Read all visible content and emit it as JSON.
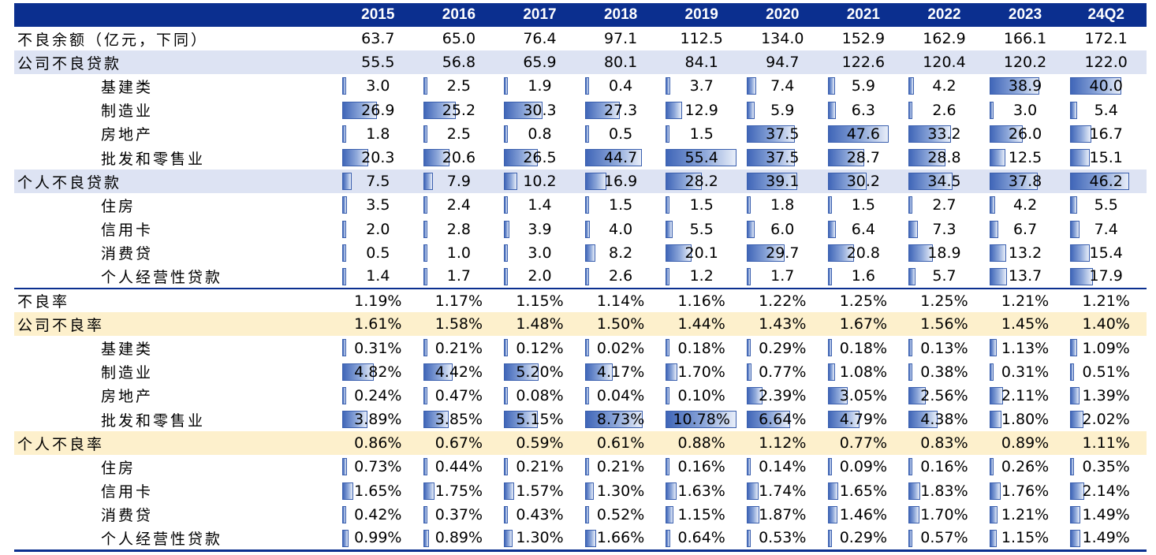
{
  "years": [
    "2015",
    "2016",
    "2017",
    "2018",
    "2019",
    "2020",
    "2021",
    "2022",
    "2023",
    "24Q2"
  ],
  "rows": [
    {
      "label": "不良余额（亿元，下同）",
      "level": "top",
      "values": [
        "63.7",
        "65.0",
        "76.4",
        "97.1",
        "112.5",
        "134.0",
        "152.9",
        "162.9",
        "166.1",
        "172.1"
      ]
    },
    {
      "label": "公司不良贷款",
      "level": "top",
      "highlight": "blue",
      "values": [
        "55.5",
        "56.8",
        "65.9",
        "80.1",
        "84.1",
        "94.7",
        "122.6",
        "120.4",
        "120.2",
        "122.0"
      ]
    },
    {
      "label": "基建类",
      "level": "sub",
      "values": [
        "3.0",
        "2.5",
        "1.9",
        "0.4",
        "3.7",
        "7.4",
        "5.9",
        "4.2",
        "38.9",
        "40.0"
      ]
    },
    {
      "label": "制造业",
      "level": "sub",
      "values": [
        "26.9",
        "25.2",
        "30.3",
        "27.3",
        "12.9",
        "5.9",
        "6.3",
        "2.6",
        "3.0",
        "5.4"
      ]
    },
    {
      "label": "房地产",
      "level": "sub",
      "values": [
        "1.8",
        "2.5",
        "0.8",
        "0.5",
        "1.5",
        "37.5",
        "47.6",
        "33.2",
        "26.0",
        "16.7"
      ]
    },
    {
      "label": "批发和零售业",
      "level": "sub",
      "values": [
        "20.3",
        "20.6",
        "26.5",
        "44.7",
        "55.4",
        "37.5",
        "28.7",
        "28.8",
        "12.5",
        "15.1"
      ]
    },
    {
      "label": "个人不良贷款",
      "level": "top",
      "highlight": "blue",
      "values": [
        "7.5",
        "7.9",
        "10.2",
        "16.9",
        "28.2",
        "39.1",
        "30.2",
        "34.5",
        "37.8",
        "46.2"
      ]
    },
    {
      "label": "住房",
      "level": "sub",
      "values": [
        "3.5",
        "2.4",
        "1.4",
        "1.5",
        "1.5",
        "1.8",
        "1.5",
        "2.7",
        "4.2",
        "5.5"
      ]
    },
    {
      "label": "信用卡",
      "level": "sub",
      "values": [
        "2.0",
        "2.8",
        "3.9",
        "4.0",
        "5.5",
        "6.0",
        "6.4",
        "7.3",
        "6.7",
        "7.4"
      ]
    },
    {
      "label": "消费贷",
      "level": "sub",
      "values": [
        "0.5",
        "1.0",
        "3.0",
        "8.2",
        "20.1",
        "29.7",
        "20.8",
        "18.9",
        "13.2",
        "15.4"
      ]
    },
    {
      "label": "个人经营性贷款",
      "level": "sub",
      "values": [
        "1.4",
        "1.7",
        "2.0",
        "2.6",
        "1.2",
        "1.7",
        "1.6",
        "5.7",
        "13.7",
        "17.9"
      ]
    },
    {
      "label": "不良率",
      "level": "top",
      "section_top": true,
      "values": [
        "1.19%",
        "1.17%",
        "1.15%",
        "1.14%",
        "1.16%",
        "1.22%",
        "1.25%",
        "1.25%",
        "1.21%",
        "1.21%"
      ]
    },
    {
      "label": "公司不良率",
      "level": "top",
      "highlight": "yellow",
      "values": [
        "1.61%",
        "1.58%",
        "1.48%",
        "1.50%",
        "1.44%",
        "1.43%",
        "1.67%",
        "1.56%",
        "1.45%",
        "1.40%"
      ]
    },
    {
      "label": "基建类",
      "level": "sub",
      "values": [
        "0.31%",
        "0.21%",
        "0.12%",
        "0.02%",
        "0.18%",
        "0.29%",
        "0.18%",
        "0.13%",
        "1.13%",
        "1.09%"
      ]
    },
    {
      "label": "制造业",
      "level": "sub",
      "values": [
        "4.82%",
        "4.42%",
        "5.20%",
        "4.17%",
        "1.70%",
        "0.77%",
        "1.08%",
        "0.38%",
        "0.31%",
        "0.51%"
      ]
    },
    {
      "label": "房地产",
      "level": "sub",
      "values": [
        "0.24%",
        "0.47%",
        "0.08%",
        "0.04%",
        "0.10%",
        "2.39%",
        "3.05%",
        "2.56%",
        "2.11%",
        "1.39%"
      ]
    },
    {
      "label": "批发和零售业",
      "level": "sub",
      "values": [
        "3.89%",
        "3.85%",
        "5.15%",
        "8.73%",
        "10.78%",
        "6.64%",
        "4.79%",
        "4.38%",
        "1.80%",
        "2.02%"
      ]
    },
    {
      "label": "个人不良率",
      "level": "top",
      "highlight": "yellow",
      "values": [
        "0.86%",
        "0.67%",
        "0.59%",
        "0.61%",
        "0.88%",
        "1.12%",
        "0.77%",
        "0.83%",
        "0.89%",
        "1.11%"
      ]
    },
    {
      "label": "住房",
      "level": "sub",
      "values": [
        "0.73%",
        "0.44%",
        "0.21%",
        "0.21%",
        "0.16%",
        "0.14%",
        "0.09%",
        "0.16%",
        "0.26%",
        "0.35%"
      ]
    },
    {
      "label": "信用卡",
      "level": "sub",
      "values": [
        "1.65%",
        "1.75%",
        "1.57%",
        "1.30%",
        "1.63%",
        "1.74%",
        "1.65%",
        "1.83%",
        "1.76%",
        "2.14%"
      ]
    },
    {
      "label": "消费贷",
      "level": "sub",
      "values": [
        "0.42%",
        "0.37%",
        "0.43%",
        "0.52%",
        "1.15%",
        "1.87%",
        "1.46%",
        "1.70%",
        "1.21%",
        "1.49%"
      ]
    },
    {
      "label": "个人经营性贷款",
      "level": "sub",
      "values": [
        "0.99%",
        "0.89%",
        "1.30%",
        "1.66%",
        "0.64%",
        "0.53%",
        "0.29%",
        "0.57%",
        "1.15%",
        "1.49%"
      ]
    }
  ],
  "bar_color": "#4066b8",
  "header_color": "#0b2f8f"
}
